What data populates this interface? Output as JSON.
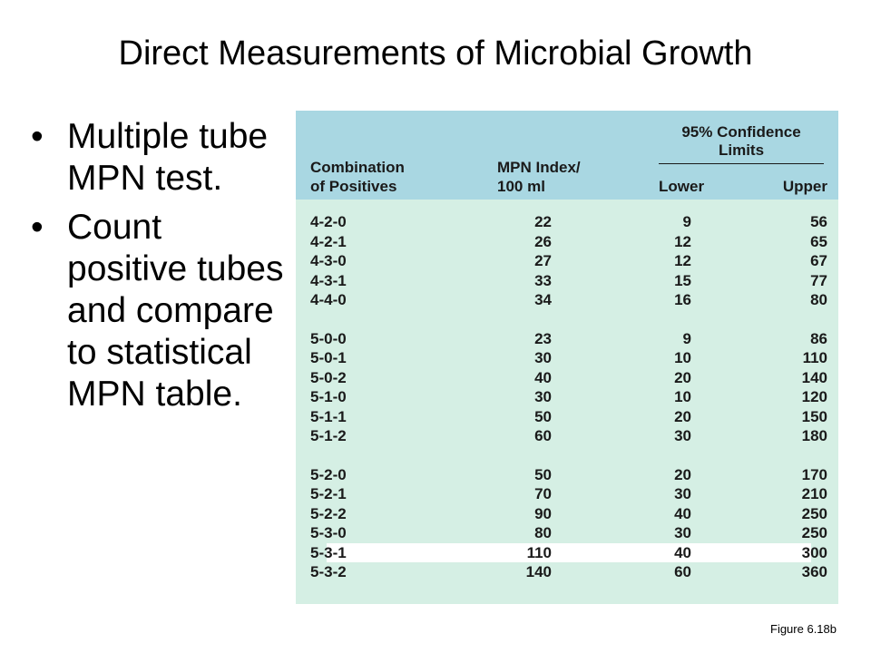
{
  "slide": {
    "title": "Direct Measurements of Microbial Growth",
    "bullets": [
      "Multiple tube MPN test.",
      "Count positive tubes and compare to statistical MPN table."
    ],
    "bullet_symbol": "•",
    "figure_caption": "Figure 6.18b"
  },
  "table": {
    "header": {
      "combination_line1": "Combination",
      "combination_line2": "of Positives",
      "index_line1": "MPN Index/",
      "index_line2": "100 ml",
      "confidence_line1": "95% Confidence",
      "confidence_line2": "Limits",
      "lower": "Lower",
      "upper": "Upper"
    },
    "rows": [
      [
        "4-2-0",
        "22",
        "9",
        "56"
      ],
      [
        "4-2-1",
        "26",
        "12",
        "65"
      ],
      [
        "4-3-0",
        "27",
        "12",
        "67"
      ],
      [
        "4-3-1",
        "33",
        "15",
        "77"
      ],
      [
        "4-4-0",
        "34",
        "16",
        "80"
      ],
      [
        "5-0-0",
        "23",
        "9",
        "86"
      ],
      [
        "5-0-1",
        "30",
        "10",
        "110"
      ],
      [
        "5-0-2",
        "40",
        "20",
        "140"
      ],
      [
        "5-1-0",
        "30",
        "10",
        "120"
      ],
      [
        "5-1-1",
        "50",
        "20",
        "150"
      ],
      [
        "5-1-2",
        "60",
        "30",
        "180"
      ],
      [
        "5-2-0",
        "50",
        "20",
        "170"
      ],
      [
        "5-2-1",
        "70",
        "30",
        "210"
      ],
      [
        "5-2-2",
        "90",
        "40",
        "250"
      ],
      [
        "5-3-0",
        "80",
        "30",
        "250"
      ],
      [
        "5-3-1",
        "110",
        "40",
        "300"
      ],
      [
        "5-3-2",
        "140",
        "60",
        "360"
      ]
    ],
    "highlighted_row": "5-3-1",
    "colors": {
      "header_bg": "#a9d7e2",
      "body_bg": "#d5efe4",
      "highlight_bg": "#ffffff"
    }
  }
}
